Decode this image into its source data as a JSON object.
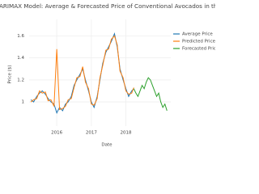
{
  "chart_data": {
    "type": "line",
    "title": "ARIMAX Model: Average & Forecasted Price of Conventional Avocados in the United State",
    "x_label": "Date",
    "y_label": "Price ($)",
    "xlim": [
      2015.2,
      2019.3
    ],
    "xticks": [
      2016,
      2017,
      2018
    ],
    "ylim": [
      0.78,
      1.75
    ],
    "yticks": [
      1,
      1.2,
      1.4,
      1.6
    ],
    "grid": true,
    "series": [
      {
        "name": "Average Price",
        "color": "#1f77b4",
        "x": [
          2015.25,
          2015.33,
          2015.42,
          2015.5,
          2015.58,
          2015.67,
          2015.75,
          2015.83,
          2015.92,
          2016.0,
          2016.08,
          2016.17,
          2016.25,
          2016.33,
          2016.42,
          2016.5,
          2016.58,
          2016.67,
          2016.75,
          2016.83,
          2016.92,
          2017.0,
          2017.08,
          2017.17,
          2017.25,
          2017.33,
          2017.42,
          2017.5,
          2017.58,
          2017.67,
          2017.75,
          2017.83,
          2017.92,
          2018.0,
          2018.08,
          2018.17,
          2018.23
        ],
        "values": [
          1.02,
          1.0,
          1.05,
          1.08,
          1.1,
          1.07,
          1.03,
          1.0,
          0.98,
          0.9,
          0.95,
          0.92,
          0.98,
          1.0,
          1.05,
          1.15,
          1.2,
          1.25,
          1.3,
          1.2,
          1.1,
          1.0,
          0.95,
          1.05,
          1.2,
          1.35,
          1.45,
          1.5,
          1.55,
          1.62,
          1.5,
          1.3,
          1.2,
          1.12,
          1.05,
          1.1,
          1.12
        ]
      },
      {
        "name": "Predicted Price",
        "color": "#ff7f0e",
        "x": [
          2015.25,
          2015.33,
          2015.42,
          2015.5,
          2015.58,
          2015.67,
          2015.75,
          2015.83,
          2015.92,
          2016.0,
          2016.08,
          2016.17,
          2016.25,
          2016.33,
          2016.42,
          2016.5,
          2016.58,
          2016.67,
          2016.75,
          2016.83,
          2016.92,
          2017.0,
          2017.08,
          2017.17,
          2017.25,
          2017.33,
          2017.42,
          2017.5,
          2017.58,
          2017.67,
          2017.75,
          2017.83,
          2017.92,
          2018.0,
          2018.08,
          2018.17,
          2018.23
        ],
        "values": [
          1.0,
          1.02,
          1.03,
          1.1,
          1.08,
          1.09,
          1.01,
          1.02,
          0.96,
          1.48,
          0.93,
          0.94,
          0.96,
          1.02,
          1.03,
          1.13,
          1.22,
          1.23,
          1.32,
          1.18,
          1.12,
          0.98,
          0.97,
          1.03,
          1.22,
          1.33,
          1.47,
          1.48,
          1.57,
          1.6,
          1.52,
          1.28,
          1.22,
          1.1,
          1.07,
          1.08,
          1.13
        ]
      },
      {
        "name": "Forecasted Price",
        "color": "#2ca02c",
        "x": [
          2018.23,
          2018.29,
          2018.35,
          2018.41,
          2018.47,
          2018.53,
          2018.59,
          2018.65,
          2018.71,
          2018.77,
          2018.83,
          2018.89,
          2018.95,
          2019.01,
          2019.07,
          2019.13,
          2019.19
        ],
        "values": [
          1.12,
          1.08,
          1.05,
          1.1,
          1.15,
          1.12,
          1.18,
          1.22,
          1.2,
          1.15,
          1.1,
          1.05,
          1.08,
          1.0,
          0.95,
          0.98,
          0.92
        ]
      }
    ]
  }
}
